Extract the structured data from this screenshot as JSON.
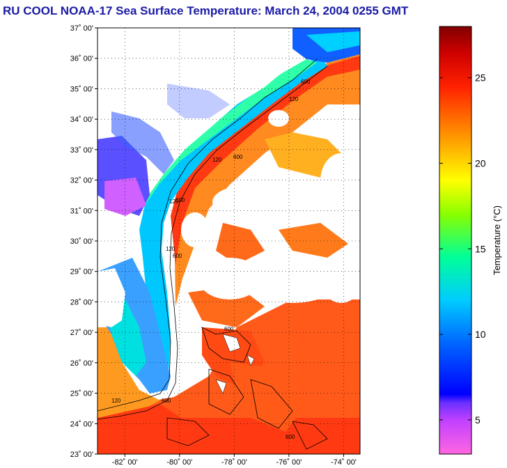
{
  "title": "RU COOL  NOAA-17  Sea Surface Temperature:  March 24, 2004 0255 GMT",
  "map": {
    "lat_labels": [
      "37˚ 00'",
      "36˚ 00'",
      "35˚ 00'",
      "34˚ 00'",
      "33˚ 00'",
      "32˚ 00'",
      "31˚ 00'",
      "30˚ 00'",
      "29˚ 00'",
      "28˚ 00'",
      "27˚ 00'",
      "26˚ 00'",
      "25˚ 00'",
      "24˚ 00'",
      "23˚ 00'"
    ],
    "lon_labels": [
      "-82˚ 00'",
      "-80˚ 00'",
      "-78˚ 00'",
      "-76˚ 00'",
      "-74˚ 00'"
    ],
    "lat_range": [
      23,
      37
    ],
    "lon_range": [
      -83,
      -73.4
    ],
    "grid": "dotted",
    "contour_labels": [
      "120",
      "600",
      "120",
      "600",
      "120",
      "600",
      "120",
      "600",
      "600",
      "600",
      "120",
      "600"
    ]
  },
  "colorbar": {
    "label": "Temperature (°C)",
    "ticks": [
      5,
      10,
      15,
      20,
      25
    ],
    "range": [
      3,
      28
    ]
  },
  "colors": {
    "title": "#1a1aa6",
    "land": "#ffffff",
    "cloud": "#ffffff"
  }
}
